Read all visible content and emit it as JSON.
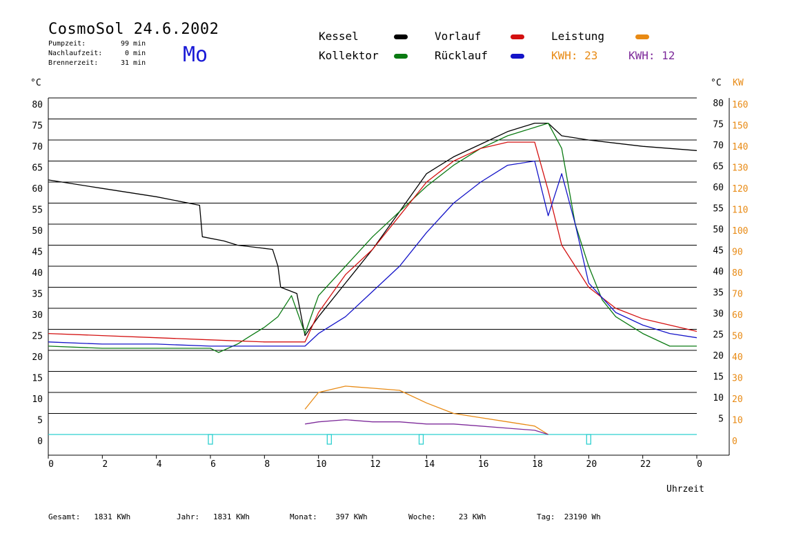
{
  "header": {
    "title": "CosmoSol 24.6.2002",
    "weekday": "Mo",
    "pump_label": "Pumpzeit:",
    "pump_value": "99 min",
    "afterrun_label": "Nachlaufzeit:",
    "afterrun_value": "0 min",
    "burner_label": "Brennerzeit:",
    "burner_value": "31 min"
  },
  "legend": {
    "kessel": "Kessel",
    "kollektor": "Kollektor",
    "vorlauf": "Vorlauf",
    "ruecklauf": "Rücklauf",
    "leistung": "Leistung",
    "kwh1": "KWH: 23",
    "kwh2": "KWH: 12"
  },
  "colors": {
    "kessel": "#000000",
    "kollektor": "#0a7a12",
    "vorlauf": "#d31010",
    "ruecklauf": "#1414c8",
    "leistung": "#e88a14",
    "kwh2": "#7d2a9a",
    "pump": "#2ed0d0"
  },
  "footer": {
    "gesamt": "Gesamt:   1831 KWh",
    "jahr": "Jahr:   1831 KWh",
    "monat": "Monat:    397 KWh",
    "woche": "Woche:     23 KWh",
    "tag": "Tag:  23190 Wh"
  },
  "chart_data": {
    "type": "line",
    "title": "CosmoSol 24.6.2002",
    "xlabel": "Uhrzeit",
    "ylabel_left": "°C",
    "ylabel_right_1": "°C",
    "ylabel_right_2": "KW",
    "xlim": [
      0,
      24
    ],
    "ylim": [
      0,
      80
    ],
    "y2lim": [
      0,
      160
    ],
    "x_ticks": [
      "0",
      "2",
      "4",
      "6",
      "8",
      "10",
      "12",
      "14",
      "16",
      "18",
      "20",
      "22",
      "0"
    ],
    "y_ticks": [
      0,
      5,
      10,
      15,
      20,
      25,
      30,
      35,
      40,
      45,
      50,
      55,
      60,
      65,
      70,
      75,
      80
    ],
    "y_ticks_right": [
      5,
      10,
      15,
      20,
      25,
      30,
      35,
      40,
      45,
      50,
      55,
      60,
      65,
      70,
      75,
      80
    ],
    "y2_ticks": [
      0,
      10,
      20,
      30,
      40,
      50,
      60,
      70,
      80,
      90,
      100,
      110,
      120,
      130,
      140,
      150,
      160
    ],
    "grid": true,
    "series": [
      {
        "name": "Kessel",
        "x": [
          0,
          2,
          4,
          5.6,
          5.7,
          6.5,
          7,
          8.3,
          8.5,
          8.6,
          9.2,
          9.5,
          10,
          11,
          12,
          13,
          14,
          15,
          16,
          17,
          18,
          18.5,
          19,
          20,
          22,
          24
        ],
        "y": [
          60.5,
          58.5,
          56.5,
          54.5,
          47,
          46,
          45,
          44,
          40,
          35,
          33.5,
          23.5,
          28,
          36,
          44,
          53,
          62,
          66,
          69,
          72,
          74,
          74,
          71,
          70,
          68.5,
          67.5
        ]
      },
      {
        "name": "Kollektor",
        "x": [
          0,
          2,
          4,
          6,
          6.3,
          7,
          7.5,
          8,
          8.5,
          9,
          9.5,
          10,
          11,
          12,
          13,
          14,
          15,
          16,
          17,
          18,
          18.5,
          19,
          19.5,
          20,
          20.5,
          21,
          22,
          23,
          24
        ],
        "y": [
          21,
          20.5,
          20.5,
          20.5,
          19.5,
          21.5,
          23.5,
          25.5,
          28,
          33,
          24,
          33,
          40,
          47,
          53,
          59,
          64,
          68,
          71,
          73,
          74,
          68,
          50,
          40,
          32,
          28,
          24,
          21,
          21
        ]
      },
      {
        "name": "Vorlauf",
        "x": [
          0,
          2,
          4,
          6,
          8,
          9.5,
          10,
          11,
          12,
          13,
          14,
          15,
          16,
          17,
          18,
          18.5,
          19,
          19.5,
          20,
          21,
          22,
          23,
          24
        ],
        "y": [
          24,
          23.5,
          23,
          22.5,
          22,
          22,
          29,
          38,
          44,
          52,
          60,
          65,
          68,
          69.5,
          69.5,
          58,
          45,
          40,
          35,
          30,
          27.5,
          26,
          24.5
        ]
      },
      {
        "name": "Rücklauf",
        "x": [
          0,
          2,
          4,
          6,
          8,
          9.5,
          10,
          11,
          12,
          13,
          14,
          15,
          16,
          17,
          18,
          18.5,
          19,
          19.5,
          20,
          21,
          22,
          23,
          24
        ],
        "y": [
          22,
          21.5,
          21.5,
          21,
          21,
          21,
          24,
          28,
          34,
          40,
          48,
          55,
          60,
          64,
          65,
          52,
          62,
          50,
          36,
          29,
          26,
          24,
          23
        ]
      },
      {
        "name": "Leistung",
        "x": [
          9.5,
          10,
          11,
          12,
          13,
          14,
          15,
          16,
          17,
          18,
          18.5
        ],
        "y": [
          12,
          20,
          23,
          22,
          21,
          15,
          10,
          8,
          6,
          4,
          0
        ]
      },
      {
        "name": "KWH: 12",
        "x": [
          9.5,
          10,
          11,
          12,
          13,
          14,
          15,
          16,
          17,
          18,
          18.5
        ],
        "y": [
          5,
          6,
          7,
          6,
          6,
          5,
          5,
          4,
          3,
          2,
          0
        ]
      }
    ],
    "pump_markers_x": [
      6,
      10.4,
      13.8,
      20
    ]
  }
}
